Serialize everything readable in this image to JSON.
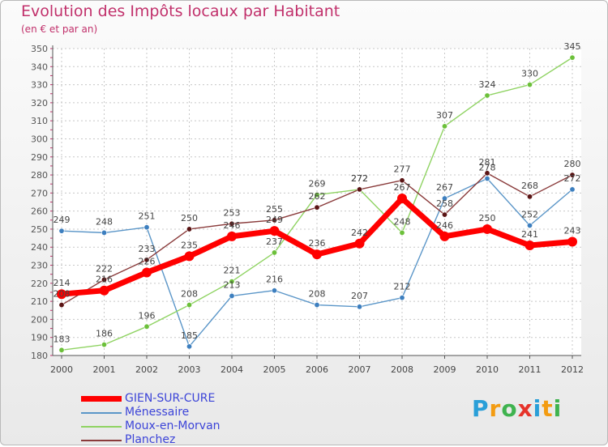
{
  "header": {
    "title": "Evolution des Impôts locaux par Habitant",
    "subtitle": "(en € et par an)"
  },
  "logo": {
    "letters": [
      "P",
      "r",
      "o",
      "x",
      "i",
      "t",
      "i"
    ],
    "colors": [
      "#2a9fd8",
      "#f39c12",
      "#3fb34f",
      "#e6332a",
      "#2a9fd8",
      "#f39c12",
      "#3fb34f"
    ]
  },
  "chart_data": {
    "type": "line",
    "x": [
      "2000",
      "2001",
      "2002",
      "2003",
      "2004",
      "2005",
      "2006",
      "2007",
      "2008",
      "2009",
      "2010",
      "2011",
      "2012"
    ],
    "ylim": [
      180,
      350
    ],
    "yticks": [
      180,
      190,
      200,
      210,
      220,
      230,
      240,
      250,
      260,
      270,
      280,
      290,
      300,
      310,
      320,
      330,
      340,
      350
    ],
    "grid": true,
    "legend": "bottom-left",
    "series": [
      {
        "name": "Ménessaire",
        "color": "#5b96c8",
        "marker": "#3d7fbf",
        "values": [
          249,
          248,
          251,
          185,
          213,
          216,
          208,
          207,
          212,
          267,
          278,
          252,
          272
        ],
        "labels": [
          "249",
          "248",
          "251",
          "185",
          "213",
          "216",
          "208",
          "207",
          "212",
          "267",
          "278",
          "252",
          "272"
        ]
      },
      {
        "name": "Moux-en-Morvan",
        "color": "#8fd362",
        "marker": "#6cc03a",
        "values": [
          183,
          186,
          196,
          208,
          221,
          237,
          269,
          272,
          248,
          307,
          324,
          330,
          345
        ],
        "labels": [
          "183",
          "186",
          "196",
          "208",
          "221",
          "237",
          "269",
          "272",
          "248",
          "307",
          "324",
          "330",
          "345"
        ]
      },
      {
        "name": "Planchez",
        "color": "#8a3b3b",
        "marker": "#5a1414",
        "values": [
          208,
          222,
          233,
          250,
          253,
          255,
          262,
          272,
          277,
          258,
          281,
          268,
          280
        ],
        "labels": [
          "208",
          "222",
          "233",
          "250",
          "253",
          "255",
          "262",
          "272",
          "277",
          "258",
          "281",
          "268",
          "280"
        ]
      },
      {
        "name": "GIEN-SUR-CURE",
        "color": "#ff0000",
        "marker": "#ff0000",
        "values": [
          214,
          216,
          226,
          235,
          246,
          249,
          236,
          242,
          267,
          246,
          250,
          241,
          243
        ],
        "labels": [
          "214",
          "216",
          "226",
          "235",
          "246",
          "249",
          "236",
          "242",
          "267",
          "246",
          "250",
          "241",
          "243"
        ]
      }
    ],
    "legend_order": [
      "GIEN-SUR-CURE",
      "Ménessaire",
      "Moux-en-Morvan",
      "Planchez"
    ]
  }
}
